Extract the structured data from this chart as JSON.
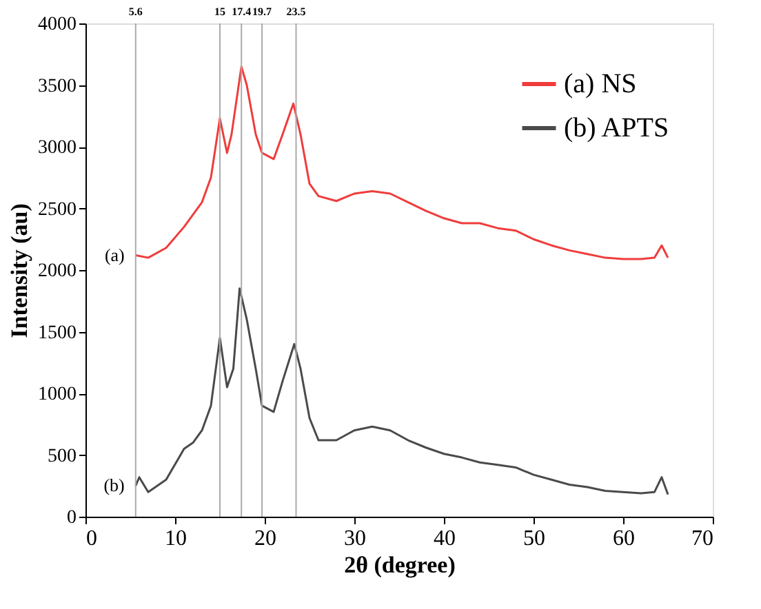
{
  "chart_data": {
    "type": "line",
    "xlabel": "2θ (degree)",
    "ylabel": "Intensity (au)",
    "xlim": [
      0,
      70
    ],
    "xticks": [
      0,
      10,
      20,
      30,
      40,
      50,
      60,
      70
    ],
    "ylim": [
      0,
      4000
    ],
    "yticks": [
      0,
      500,
      1000,
      1500,
      2000,
      2500,
      3000,
      3500,
      4000
    ],
    "grid": false,
    "legend": "top right",
    "marker": "none",
    "line_style": "solid",
    "series": [
      {
        "name": "(a) NS",
        "color": "#f03c3c",
        "x": [
          5.6,
          7,
          9,
          11,
          13,
          14,
          15,
          15.8,
          16.3,
          17.4,
          18,
          19,
          19.7,
          21,
          22,
          23.2,
          24,
          25,
          26,
          28,
          30,
          32,
          34,
          36,
          38,
          40,
          42,
          44,
          46,
          48,
          50,
          52,
          54,
          56,
          58,
          60,
          62,
          63.5,
          64.3,
          65
        ],
        "values": [
          2120,
          2100,
          2180,
          2350,
          2550,
          2750,
          3230,
          2950,
          3100,
          3650,
          3500,
          3100,
          2950,
          2900,
          3100,
          3350,
          3100,
          2700,
          2600,
          2560,
          2620,
          2640,
          2620,
          2550,
          2480,
          2420,
          2380,
          2380,
          2340,
          2320,
          2250,
          2200,
          2160,
          2130,
          2100,
          2090,
          2090,
          2100,
          2200,
          2100
        ]
      },
      {
        "name": "(b) APTS",
        "color": "#4a4a4a",
        "x": [
          5.6,
          6,
          7,
          9,
          11,
          12,
          13,
          14,
          15,
          15.8,
          16.5,
          17.2,
          18,
          19,
          19.7,
          21,
          22,
          23.3,
          24,
          25,
          26,
          28,
          30,
          32,
          34,
          36,
          38,
          40,
          42,
          44,
          46,
          48,
          50,
          52,
          54,
          56,
          58,
          60,
          62,
          63.5,
          64.3,
          65
        ],
        "values": [
          250,
          320,
          200,
          300,
          550,
          600,
          700,
          900,
          1450,
          1050,
          1200,
          1850,
          1600,
          1200,
          900,
          850,
          1100,
          1400,
          1200,
          800,
          620,
          620,
          700,
          730,
          700,
          620,
          560,
          510,
          480,
          440,
          420,
          400,
          340,
          300,
          260,
          240,
          210,
          200,
          190,
          200,
          320,
          180
        ]
      }
    ],
    "ref_lines": [
      {
        "axis": "x",
        "value": 5.6,
        "label": "5.6",
        "color": "#aaaaaa"
      },
      {
        "axis": "x",
        "value": 15,
        "label": "15",
        "color": "#aaaaaa"
      },
      {
        "axis": "x",
        "value": 17.4,
        "label": "17.4",
        "color": "#aaaaaa"
      },
      {
        "axis": "x",
        "value": 19.7,
        "label": "19.7",
        "color": "#aaaaaa"
      },
      {
        "axis": "x",
        "value": 23.5,
        "label": "23.5",
        "color": "#aaaaaa"
      }
    ],
    "annotations": [
      "(a)",
      "(b)"
    ]
  }
}
